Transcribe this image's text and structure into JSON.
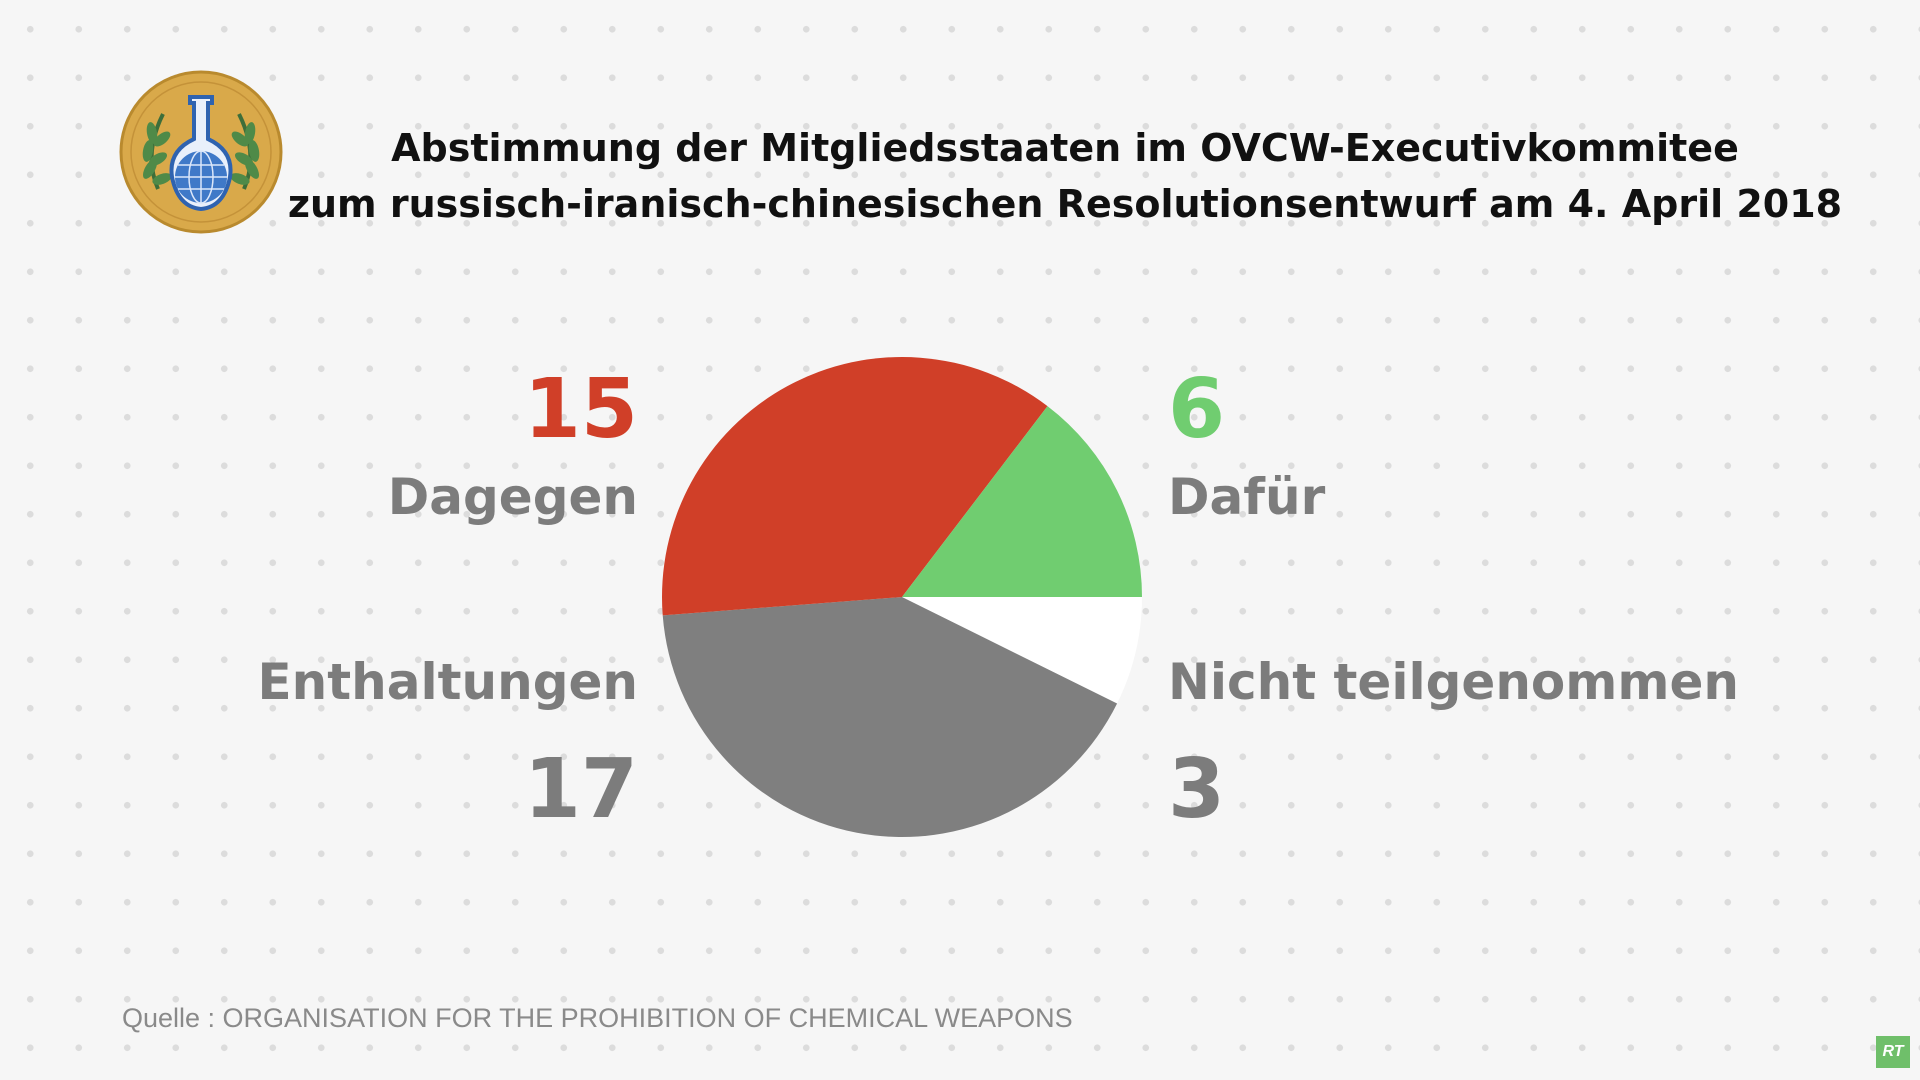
{
  "title": {
    "line1": "Abstimmung der Mitgliedsstaaten im OVCW-Executivkommitee",
    "line2": "zum russisch-iranisch-chinesischen Resolutionsentwurf am 4. April 2018"
  },
  "chart_data": {
    "type": "pie",
    "start_angle_deg": 90,
    "direction": "clockwise",
    "slices": [
      {
        "label": "Nicht teilgenommen",
        "value": 3,
        "color": "#ffffff"
      },
      {
        "label": "Enthaltungen",
        "value": 17,
        "color": "#7f7f7f"
      },
      {
        "label": "Dagegen",
        "value": 15,
        "color": "#d03f28"
      },
      {
        "label": "Dafür",
        "value": 6,
        "color": "#70cd70"
      }
    ]
  },
  "labels": {
    "against": {
      "value": "15",
      "label": "Dagegen",
      "color": "#d03f28"
    },
    "for": {
      "value": "6",
      "label": "Dafür",
      "color": "#70cd70"
    },
    "abstain": {
      "value": "17",
      "label": "Enthaltungen",
      "color": "#7c7c7c"
    },
    "absent": {
      "value": "3",
      "label": "Nicht teilgenommen",
      "color": "#7c7c7c"
    }
  },
  "source": "Quelle : ORGANISATION FOR THE PROHIBITION OF CHEMICAL WEAPONS",
  "logo": {
    "icon": "opcw-emblem-icon"
  },
  "badge": {
    "text": "RT",
    "color": "#6fbf6a"
  }
}
